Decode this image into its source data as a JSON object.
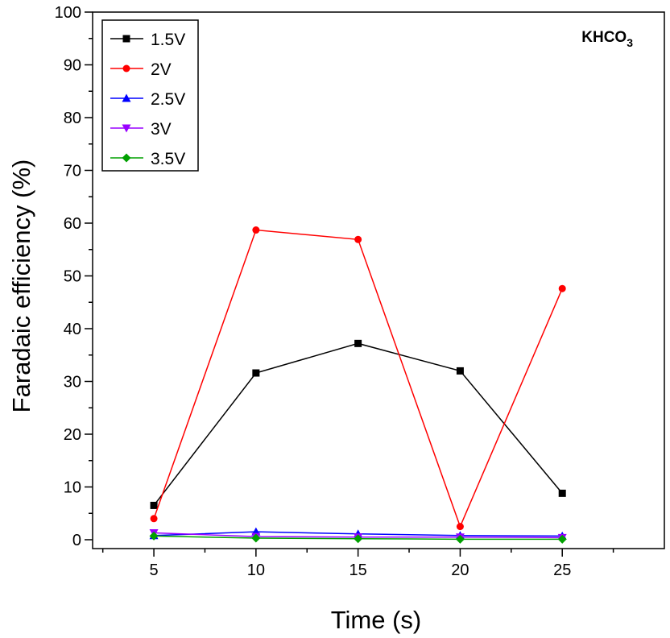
{
  "chart_data": {
    "type": "line",
    "title": "",
    "xlabel": "Time (s)",
    "ylabel": "Faradaic efficiency (%)",
    "xlim": [
      2,
      30
    ],
    "ylim": [
      0,
      100
    ],
    "x": [
      5,
      10,
      15,
      20,
      25
    ],
    "x_ticks": [
      "5",
      "10",
      "15",
      "20",
      "25"
    ],
    "y_ticks": [
      "0",
      "10",
      "20",
      "30",
      "40",
      "50",
      "60",
      "70",
      "80",
      "90",
      "100"
    ],
    "annotation": {
      "main": "KHCO",
      "subscript": "3"
    },
    "legend_position": "top-left",
    "grid": false,
    "series": [
      {
        "name": "1.5V",
        "color": "#000000",
        "marker": "square",
        "values": [
          6.5,
          31.6,
          37.2,
          32.0,
          8.8
        ]
      },
      {
        "name": "2V",
        "color": "#ff0000",
        "marker": "circle",
        "values": [
          4.0,
          58.7,
          56.9,
          2.5,
          47.6
        ]
      },
      {
        "name": "2.5V",
        "color": "#0000ff",
        "marker": "triangle-up",
        "values": [
          0.8,
          1.5,
          1.1,
          0.8,
          0.7
        ]
      },
      {
        "name": "3V",
        "color": "#9900ff",
        "marker": "triangle-down",
        "values": [
          1.3,
          0.6,
          0.5,
          0.5,
          0.4
        ]
      },
      {
        "name": "3.5V",
        "color": "#00a000",
        "marker": "diamond",
        "values": [
          0.7,
          0.3,
          0.2,
          0.1,
          0.1
        ]
      }
    ]
  }
}
